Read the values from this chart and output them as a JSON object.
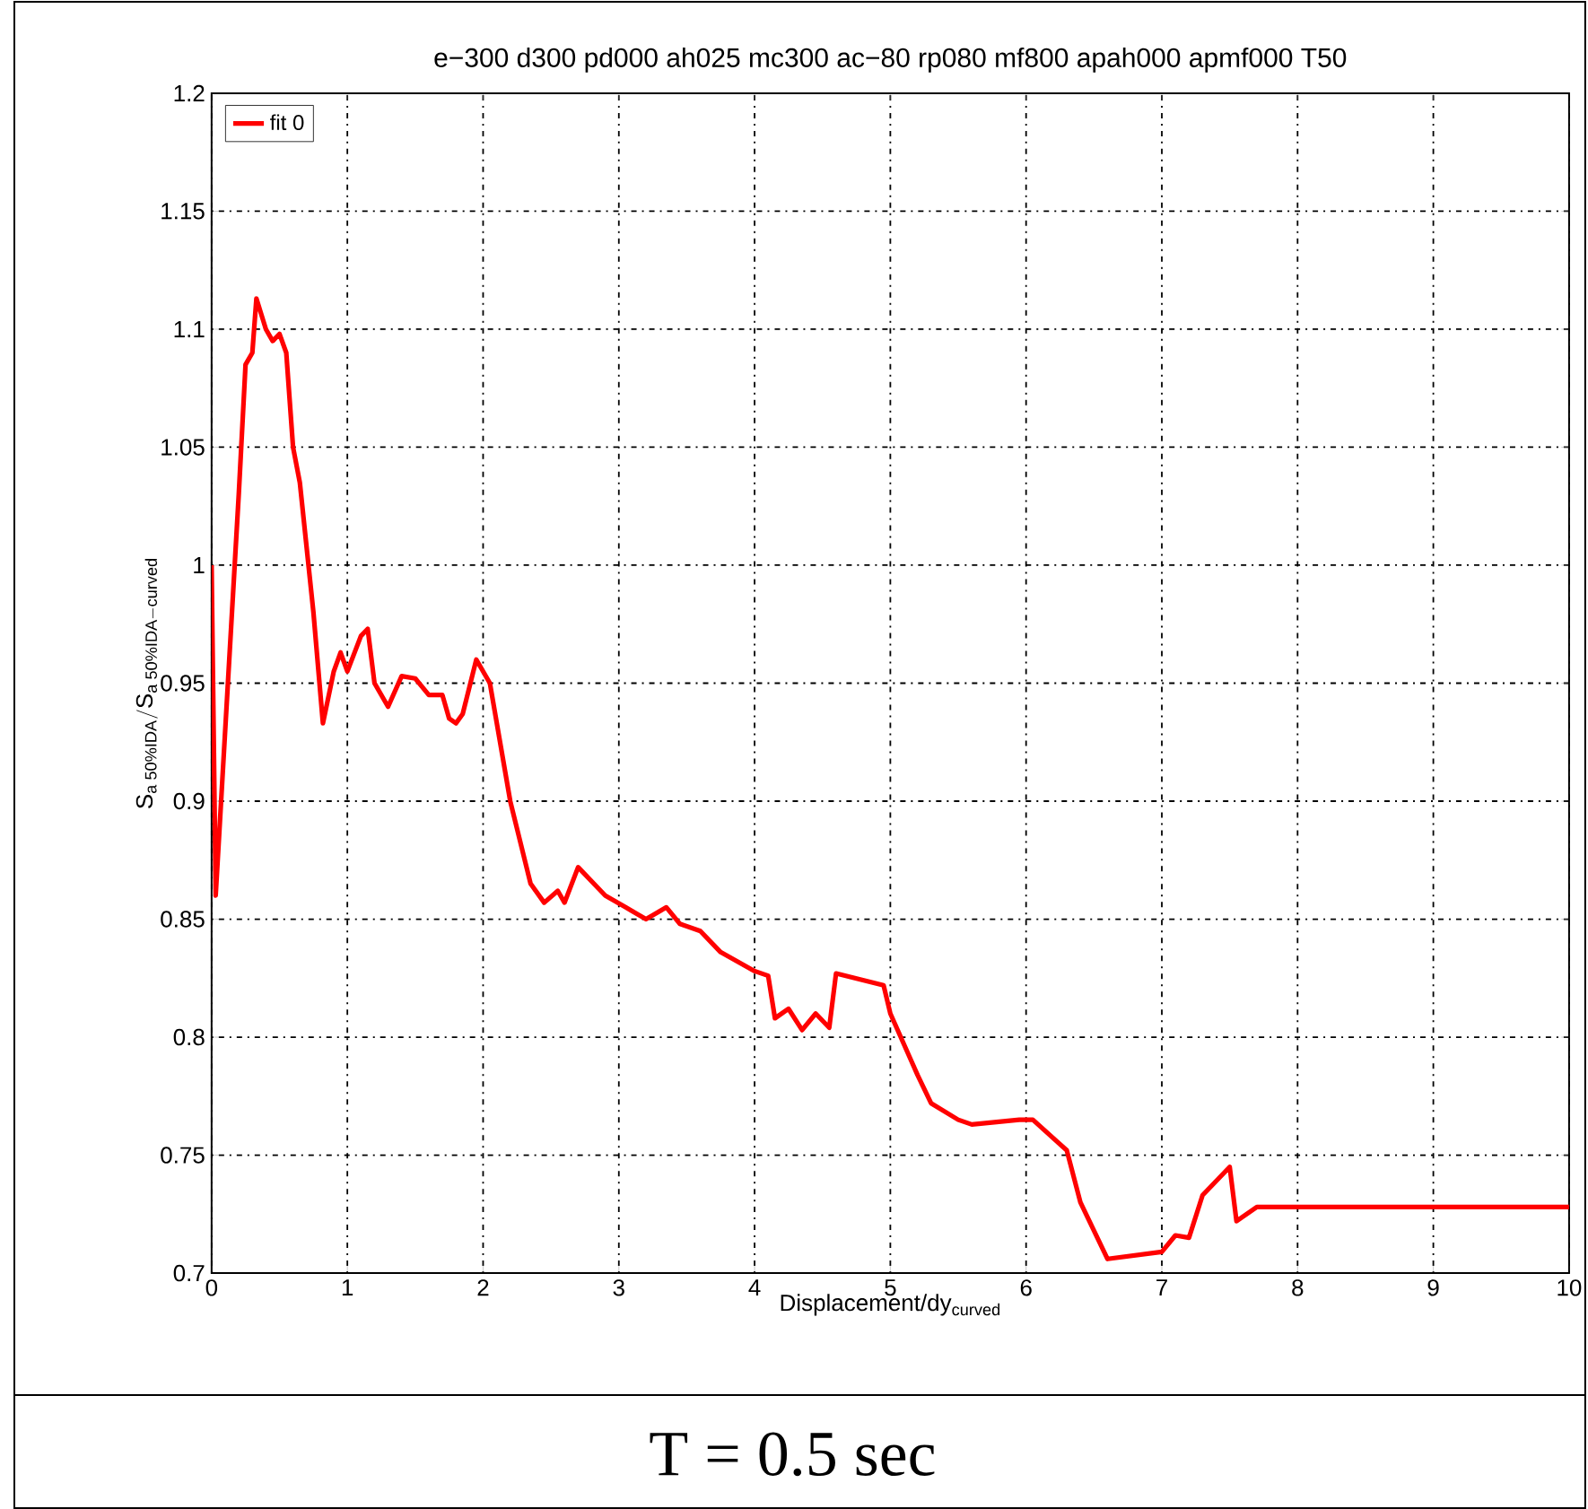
{
  "chart_data": {
    "type": "line",
    "title": "e−300 d300 pd000 ah025 mc300 ac−80 rp080 mf800 apah000 apmf000  T50",
    "xlabel": "Displacement/dy$_{curved}$",
    "ylabel": "\\mathrm{S_{a\\;50\\%IDA}/S_{a\\;50\\%IDA{-}curved}}",
    "annotations": [
      "T = 0.5 sec"
    ],
    "series": [
      {
        "name": "fit 0",
        "color": "#ff0000",
        "x": [
          0,
          0.03,
          0.2,
          0.25,
          0.3,
          0.33,
          0.4,
          0.45,
          0.5,
          0.55,
          0.6,
          0.65,
          0.75,
          0.82,
          0.9,
          0.95,
          1.0,
          1.1,
          1.15,
          1.2,
          1.3,
          1.4,
          1.5,
          1.6,
          1.7,
          1.75,
          1.8,
          1.85,
          1.95,
          2.05,
          2.2,
          2.35,
          2.45,
          2.55,
          2.6,
          2.7,
          2.9,
          3.05,
          3.2,
          3.35,
          3.45,
          3.6,
          3.75,
          4.0,
          4.1,
          4.15,
          4.25,
          4.35,
          4.45,
          4.55,
          4.6,
          4.95,
          5.0,
          5.2,
          5.3,
          5.5,
          5.6,
          5.95,
          6.05,
          6.3,
          6.4,
          6.6,
          7.0,
          7.1,
          7.2,
          7.3,
          7.5,
          7.55,
          7.7,
          10
        ],
        "values": [
          1.0,
          0.86,
          1.03,
          1.085,
          1.09,
          1.113,
          1.1,
          1.095,
          1.098,
          1.09,
          1.05,
          1.035,
          0.98,
          0.933,
          0.955,
          0.963,
          0.955,
          0.97,
          0.973,
          0.95,
          0.94,
          0.953,
          0.952,
          0.945,
          0.945,
          0.935,
          0.933,
          0.937,
          0.96,
          0.95,
          0.9,
          0.865,
          0.857,
          0.862,
          0.857,
          0.872,
          0.86,
          0.855,
          0.85,
          0.855,
          0.848,
          0.845,
          0.836,
          0.828,
          0.826,
          0.808,
          0.812,
          0.803,
          0.81,
          0.804,
          0.827,
          0.822,
          0.81,
          0.784,
          0.772,
          0.765,
          0.763,
          0.765,
          0.765,
          0.752,
          0.73,
          0.706,
          0.709,
          0.716,
          0.715,
          0.733,
          0.745,
          0.722,
          0.728,
          0.728
        ]
      }
    ],
    "xlim": [
      0,
      10
    ],
    "xticks": [
      0,
      1,
      2,
      3,
      4,
      5,
      6,
      7,
      8,
      9,
      10
    ],
    "ylim": [
      0.7,
      1.2
    ],
    "yticks": [
      0.7,
      0.75,
      0.8,
      0.85,
      0.9,
      0.95,
      1,
      1.05,
      1.1,
      1.15,
      1.2
    ],
    "grid": true,
    "legend": "top left",
    "marker": "none",
    "line_style": "solid"
  }
}
